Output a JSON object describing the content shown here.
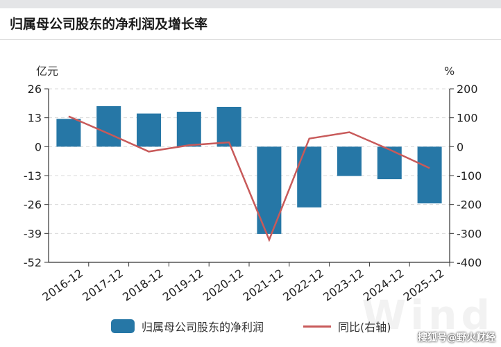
{
  "title": "归属母公司股东的净利润及增长率",
  "chart_data": {
    "type": "bar",
    "categories": [
      "2016-12",
      "2017-12",
      "2018-12",
      "2019-12",
      "2020-12",
      "2021-12",
      "2022-12",
      "2023-12",
      "2024-12",
      "2025-12"
    ],
    "series": [
      {
        "name": "归属母公司股东的净利润",
        "type": "bar",
        "axis": "left",
        "values": [
          12.5,
          18.2,
          14.9,
          15.7,
          17.9,
          -39.2,
          -27.3,
          -13.2,
          -14.6,
          -25.5
        ]
      },
      {
        "name": "同比(右轴)",
        "type": "line",
        "axis": "right",
        "values": [
          105,
          45,
          -17,
          5,
          15,
          -322,
          28,
          50,
          -10,
          -74
        ]
      }
    ],
    "y_left": {
      "label": "亿元",
      "ticks": [
        26,
        13,
        0,
        -13,
        -26,
        -39,
        -52
      ],
      "min": -52,
      "max": 26
    },
    "y_right": {
      "label": "%",
      "ticks": [
        200,
        100,
        0,
        -100,
        -200,
        -300,
        -400
      ],
      "min": -400,
      "max": 200
    },
    "grid": true,
    "legend": "bottom",
    "colors": {
      "bar": "#2677a6",
      "line": "#c85a5a",
      "axis": "#333333",
      "grid": "#d9d9d9"
    }
  },
  "watermark": "Wind",
  "source_label": "搜狐号@野火财经"
}
